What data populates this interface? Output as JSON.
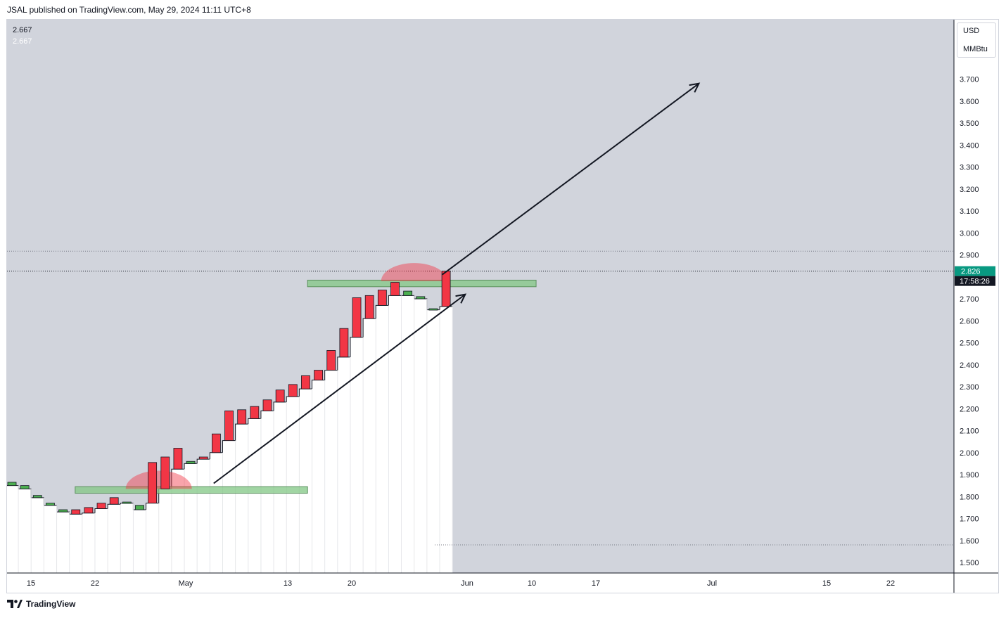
{
  "header": {
    "published_text": "JSAL published on TradingView.com, May 29, 2024 11:11 UTC+8"
  },
  "legend": {
    "value_1": "2.667",
    "value_2": "2.667"
  },
  "price_scale": {
    "currency": "USD",
    "unit": "MMBtu",
    "current_price": "2.826",
    "countdown": "17:58:26",
    "current_price_color": "#089981"
  },
  "footer": {
    "brand": "TradingView"
  },
  "colors": {
    "background": "#d1d4dc",
    "up": "#4caf50",
    "down": "#f23645",
    "zone": "#81c784"
  },
  "chart_data": {
    "type": "candlestick",
    "y_ticks": [
      "3.700",
      "3.600",
      "3.500",
      "3.400",
      "3.300",
      "3.200",
      "3.100",
      "3.000",
      "2.900",
      "2.800",
      "2.700",
      "2.600",
      "2.500",
      "2.400",
      "2.300",
      "2.200",
      "2.100",
      "2.000",
      "1.900",
      "1.800",
      "1.700",
      "1.600",
      "1.500"
    ],
    "x_ticks": [
      "15",
      "22",
      "May",
      "13",
      "20",
      "Jun",
      "10",
      "17",
      "Jul",
      "15",
      "22"
    ],
    "ylim": [
      1.45,
      3.85
    ],
    "candles": [
      {
        "o": 1.865,
        "c": 1.85,
        "dir": "up"
      },
      {
        "o": 1.85,
        "c": 1.835,
        "dir": "up"
      },
      {
        "o": 1.805,
        "c": 1.795,
        "dir": "up"
      },
      {
        "o": 1.77,
        "c": 1.76,
        "dir": "up"
      },
      {
        "o": 1.74,
        "c": 1.73,
        "dir": "up"
      },
      {
        "o": 1.72,
        "c": 1.74,
        "dir": "down"
      },
      {
        "o": 1.725,
        "c": 1.75,
        "dir": "down"
      },
      {
        "o": 1.745,
        "c": 1.77,
        "dir": "down"
      },
      {
        "o": 1.765,
        "c": 1.795,
        "dir": "down"
      },
      {
        "o": 1.775,
        "c": 1.77,
        "dir": "up"
      },
      {
        "o": 1.76,
        "c": 1.74,
        "dir": "up"
      },
      {
        "o": 1.77,
        "c": 1.955,
        "dir": "down"
      },
      {
        "o": 1.835,
        "c": 1.98,
        "dir": "down"
      },
      {
        "o": 1.925,
        "c": 2.02,
        "dir": "down"
      },
      {
        "o": 1.96,
        "c": 1.95,
        "dir": "up"
      },
      {
        "o": 1.97,
        "c": 1.98,
        "dir": "down"
      },
      {
        "o": 2.0,
        "c": 2.085,
        "dir": "down"
      },
      {
        "o": 2.055,
        "c": 2.19,
        "dir": "down"
      },
      {
        "o": 2.13,
        "c": 2.195,
        "dir": "down"
      },
      {
        "o": 2.155,
        "c": 2.21,
        "dir": "down"
      },
      {
        "o": 2.19,
        "c": 2.24,
        "dir": "down"
      },
      {
        "o": 2.23,
        "c": 2.285,
        "dir": "down"
      },
      {
        "o": 2.255,
        "c": 2.31,
        "dir": "down"
      },
      {
        "o": 2.29,
        "c": 2.35,
        "dir": "down"
      },
      {
        "o": 2.33,
        "c": 2.375,
        "dir": "down"
      },
      {
        "o": 2.375,
        "c": 2.465,
        "dir": "down"
      },
      {
        "o": 2.435,
        "c": 2.565,
        "dir": "down"
      },
      {
        "o": 2.525,
        "c": 2.705,
        "dir": "down"
      },
      {
        "o": 2.61,
        "c": 2.715,
        "dir": "down"
      },
      {
        "o": 2.67,
        "c": 2.74,
        "dir": "down"
      },
      {
        "o": 2.715,
        "c": 2.775,
        "dir": "down"
      },
      {
        "o": 2.735,
        "c": 2.715,
        "dir": "up"
      },
      {
        "o": 2.71,
        "c": 2.7,
        "dir": "up"
      },
      {
        "o": 2.65,
        "c": 2.655,
        "dir": "up"
      },
      {
        "o": 2.665,
        "c": 2.826,
        "dir": "down"
      }
    ],
    "zones": [
      {
        "x0": 5.0,
        "x1": 23.2,
        "y0": 1.815,
        "y1": 1.845
      },
      {
        "x0": 23.2,
        "x1": 41.1,
        "y0": 2.755,
        "y1": 2.785
      }
    ],
    "arches": [
      {
        "cx": 11.5,
        "y": 1.835
      },
      {
        "cx": 31.5,
        "y": 2.78
      }
    ],
    "arrows": [
      {
        "x0": 15.8,
        "y0": 1.86,
        "x1": 35.5,
        "y1": 2.72
      },
      {
        "x0": 33.7,
        "y0": 2.81,
        "x1": 53.8,
        "y1": 3.68
      }
    ],
    "ref_lines": [
      2.917,
      2.826,
      1.58
    ],
    "grid": false
  }
}
